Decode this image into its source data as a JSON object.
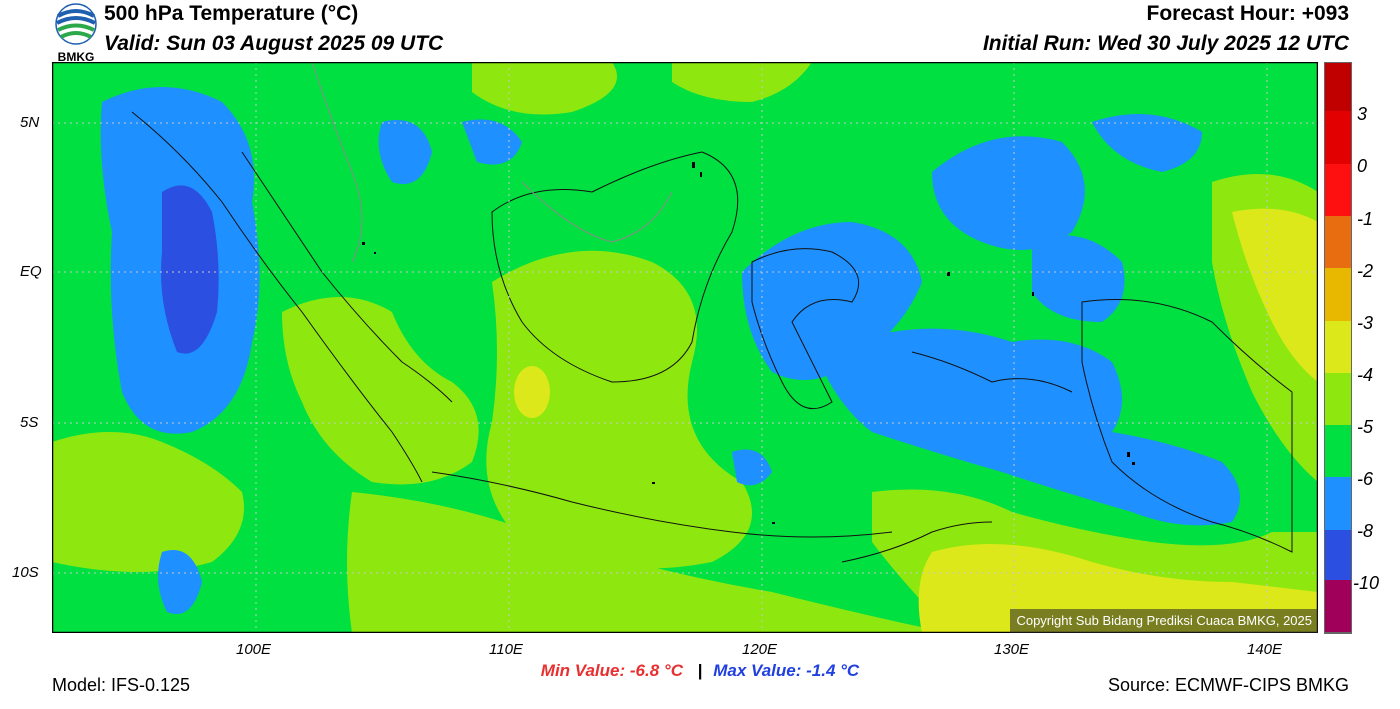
{
  "header": {
    "logo_text": "BMKG",
    "title": "500 hPa Temperature (°C)",
    "valid": "Valid: Sun 03 August 2025 09 UTC",
    "forecast_hour": "Forecast Hour: +093",
    "initial_run": "Initial Run: Wed 30 July 2025 12 UTC"
  },
  "map": {
    "lat_labels": [
      "5N",
      "EQ",
      "5S",
      "10S"
    ],
    "lon_labels": [
      "100E",
      "110E",
      "120E",
      "130E",
      "140E"
    ],
    "copyright": "Copyright Sub Bidang Prediksi Cuaca BMKG, 2025",
    "colors": {
      "deep_blue": "#2b4fe0",
      "blue": "#1e90ff",
      "green": "#00e040",
      "yellowgreen": "#8ee80f",
      "yellow": "#dce81a"
    }
  },
  "colorbar": {
    "labels": [
      "3",
      "0",
      "-1",
      "-2",
      "-3",
      "-4",
      "-5",
      "-6",
      "-8",
      "-10"
    ],
    "colors": [
      "#a0005a",
      "#a010f0",
      "#2b4fe0",
      "#1e90ff",
      "#00e040",
      "#8ee80f",
      "#dce81a",
      "#e8b800",
      "#e86c10",
      "#ff1010",
      "#e20000",
      "#c00000"
    ]
  },
  "footer": {
    "model": "Model: IFS-0.125",
    "min_value": "Min Value: -6.8 °C",
    "separator": "|",
    "max_value": "Max Value: -1.4 °C",
    "source": "Source: ECMWF-CIPS BMKG"
  }
}
